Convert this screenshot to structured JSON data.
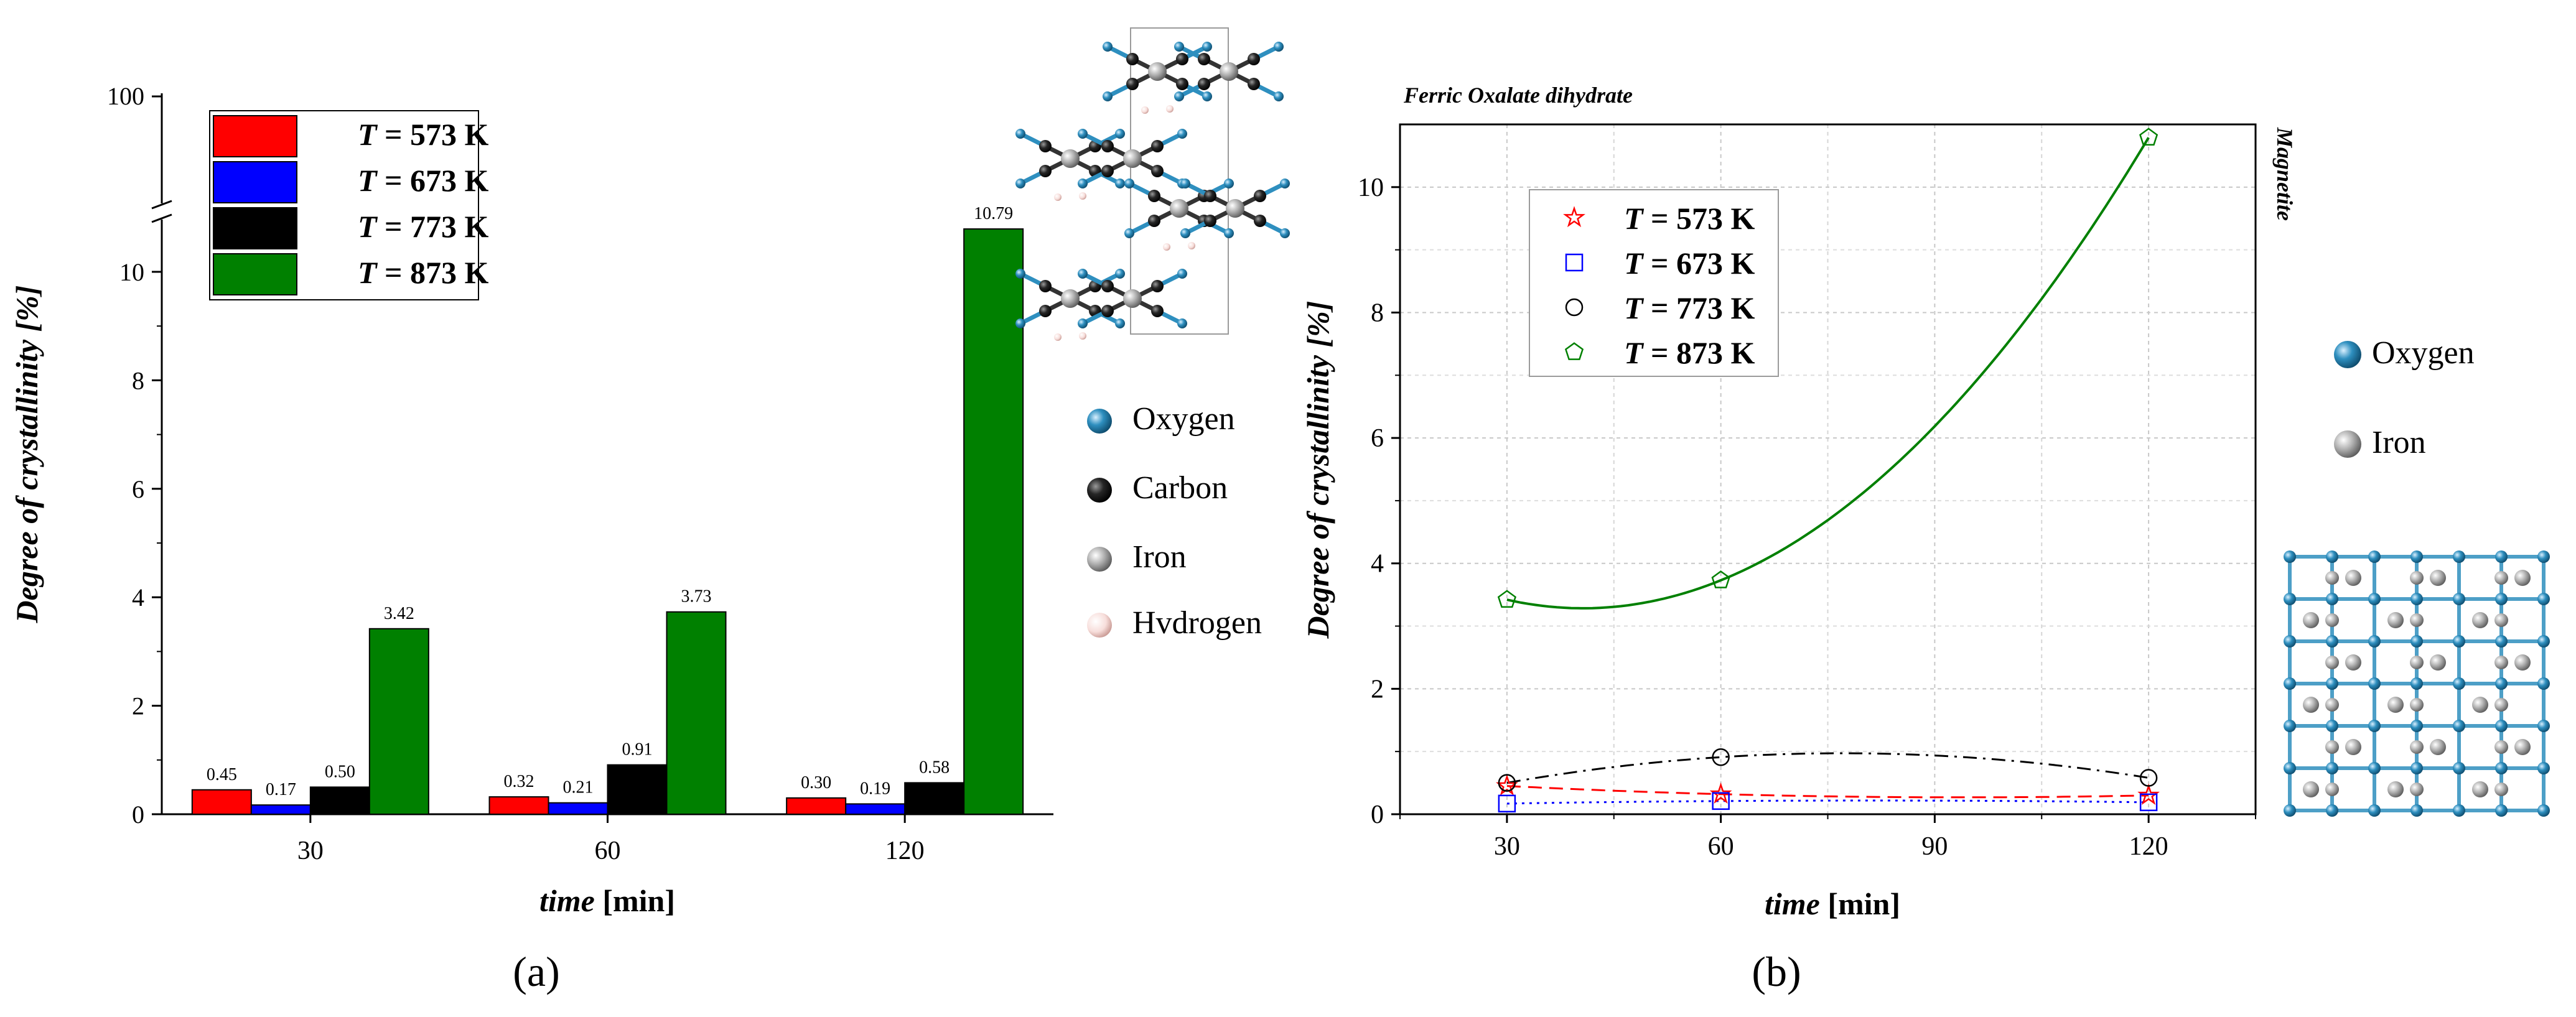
{
  "colors": {
    "red": "#ff0000",
    "blue": "#0000ff",
    "black": "#000000",
    "green": "#008000",
    "oxygen": "#2e8fbf",
    "carbon": "#262626",
    "iron": "#a6a6a6",
    "hydrogen": "#f4d6d2"
  },
  "panel_labels": {
    "a": "(a)",
    "b": "(b)"
  },
  "legend_prefix": "T",
  "atom_legend_a": [
    "Oxygen",
    "Carbon",
    "Iron",
    "Hvdrogen"
  ],
  "atom_legend_b": [
    "Oxygen",
    "Iron"
  ],
  "structure_labels": {
    "left": "Ferric Oxalate dihydrate",
    "right": "Magnetite"
  },
  "chart_data": [
    {
      "type": "bar",
      "title": "",
      "xlabel_italic": "time",
      "xlabel_unit": "[min]",
      "ylabel": "Degree of crystallinity [%]",
      "categories": [
        "30",
        "60",
        "120"
      ],
      "ylim": [
        0,
        11
      ],
      "axis_break_top_tick": 100,
      "yticks": [
        0,
        2,
        4,
        6,
        8,
        10
      ],
      "series": [
        {
          "name": "= 573 K",
          "color": "#ff0000",
          "values": [
            0.45,
            0.32,
            0.3
          ],
          "labels": [
            "0.45",
            "0.32",
            "0.30"
          ]
        },
        {
          "name": "= 673 K",
          "color": "#0000ff",
          "values": [
            0.17,
            0.21,
            0.19
          ],
          "labels": [
            "0.17",
            "0.21",
            "0.19"
          ]
        },
        {
          "name": "= 773 K",
          "color": "#000000",
          "values": [
            0.5,
            0.91,
            0.58
          ],
          "labels": [
            "0.50",
            "0.91",
            "0.58"
          ]
        },
        {
          "name": "= 873 K",
          "color": "#008000",
          "values": [
            3.42,
            3.73,
            10.79
          ],
          "labels": [
            "3.42",
            "3.73",
            "10.79"
          ]
        }
      ]
    },
    {
      "type": "scatter",
      "title": "",
      "xlabel_italic": "time",
      "xlabel_unit": "[min]",
      "ylabel": "Degree of crystallinity [%]",
      "x": [
        30,
        60,
        120
      ],
      "xlim": [
        15,
        135
      ],
      "ylim": [
        0,
        11
      ],
      "xticks": [
        30,
        60,
        90,
        120
      ],
      "yticks": [
        0,
        2,
        4,
        6,
        8,
        10
      ],
      "grid": true,
      "series": [
        {
          "name": "= 573 K",
          "color": "#ff0000",
          "marker": "star",
          "line": "dashed",
          "values": [
            0.45,
            0.32,
            0.3
          ]
        },
        {
          "name": "= 673 K",
          "color": "#0000ff",
          "marker": "square",
          "line": "dotted",
          "values": [
            0.17,
            0.21,
            0.19
          ]
        },
        {
          "name": "= 773 K",
          "color": "#000000",
          "marker": "circle",
          "line": "dashdot",
          "values": [
            0.5,
            0.91,
            0.58
          ]
        },
        {
          "name": "= 873 K",
          "color": "#008000",
          "marker": "pentagon",
          "line": "solid",
          "values": [
            3.42,
            3.73,
            10.79
          ]
        }
      ]
    }
  ]
}
